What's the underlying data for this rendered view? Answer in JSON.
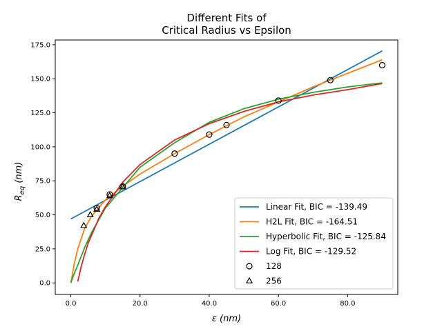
{
  "chart_data": {
    "type": "line",
    "title": [
      "Different Fits of",
      "Critical Radius vs Epsilon"
    ],
    "xlabel": "ε (nm)",
    "ylabel": "Req (nm)",
    "xlim": [
      -4.5,
      94.5
    ],
    "ylim": [
      -8.5,
      178.5
    ],
    "xticks": [
      0,
      20,
      40,
      60,
      80
    ],
    "xtick_labels": [
      "0.0",
      "20.0",
      "40.0",
      "60.0",
      "80.0"
    ],
    "yticks": [
      0,
      25,
      50,
      75,
      100,
      125,
      150,
      175
    ],
    "ytick_labels": [
      "0.0",
      "25.0",
      "50.0",
      "75.0",
      "100.0",
      "125.0",
      "150.0",
      "175.0"
    ],
    "grid": false,
    "legend_position": "bottom-right",
    "series": [
      {
        "name": "Linear Fit, BIC = -139.49",
        "kind": "line",
        "color": "#1f77b4",
        "x": [
          0,
          90
        ],
        "y": [
          47,
          170.5
        ]
      },
      {
        "name": "H2L Fit, BIC = -164.51",
        "kind": "line",
        "color": "#ff7f0e",
        "x": [
          0,
          1,
          2,
          4,
          6,
          8,
          10,
          15,
          20,
          30,
          40,
          50,
          60,
          70,
          80,
          90
        ],
        "y": [
          0,
          14,
          25,
          40,
          49,
          55,
          61,
          71,
          80,
          95,
          109,
          122,
          133,
          144,
          154,
          164
        ]
      },
      {
        "name": "Hyperbolic Fit, BIC = -125.84",
        "kind": "line",
        "color": "#2ca02c",
        "x": [
          0,
          1,
          2,
          4,
          6,
          8,
          10,
          15,
          20,
          30,
          40,
          50,
          60,
          70,
          80,
          90
        ],
        "y": [
          0,
          7,
          13,
          26,
          37,
          46,
          55,
          70,
          85,
          103,
          118,
          128,
          135,
          140,
          144,
          147
        ]
      },
      {
        "name": "Log Fit, BIC = -129.52",
        "kind": "line",
        "color": "#d62728",
        "x": [
          2,
          3,
          4,
          5,
          6,
          8,
          10,
          15,
          20,
          30,
          40,
          50,
          60,
          70,
          80,
          90
        ],
        "y": [
          1,
          12,
          21,
          29,
          35,
          47,
          56,
          74,
          87,
          105,
          117,
          126,
          133,
          138,
          142,
          146.5
        ]
      },
      {
        "name": "128",
        "kind": "scatter",
        "marker": "circle",
        "color": "#000000",
        "x": [
          7.5,
          11.25,
          15,
          30,
          40,
          45,
          60,
          75,
          90
        ],
        "y": [
          55,
          65,
          71,
          95,
          109,
          116,
          134,
          149,
          160
        ]
      },
      {
        "name": "256",
        "kind": "scatter",
        "marker": "triangle",
        "color": "#000000",
        "x": [
          3.75,
          5.63,
          7.5,
          11.25,
          15
        ],
        "y": [
          42,
          50,
          54,
          64,
          70.5
        ]
      }
    ]
  }
}
